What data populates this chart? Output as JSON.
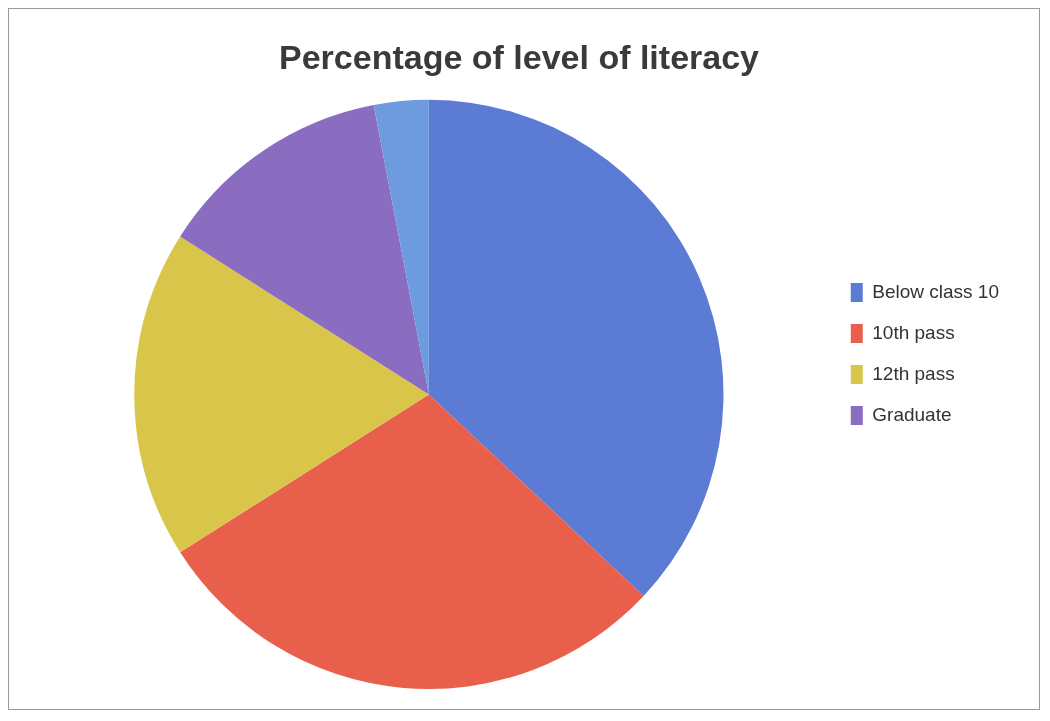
{
  "chart_data": {
    "type": "pie",
    "title": "Percentage of level of literacy",
    "categories": [
      "Below class 10",
      "10th pass",
      "12th pass",
      "Graduate",
      null
    ],
    "values": [
      37,
      29,
      18,
      13,
      3
    ],
    "colors": [
      "#5b7bd5",
      "#e8604c",
      "#d9c54a",
      "#8a6cc0",
      "#6e9be0"
    ],
    "legend": "right"
  }
}
